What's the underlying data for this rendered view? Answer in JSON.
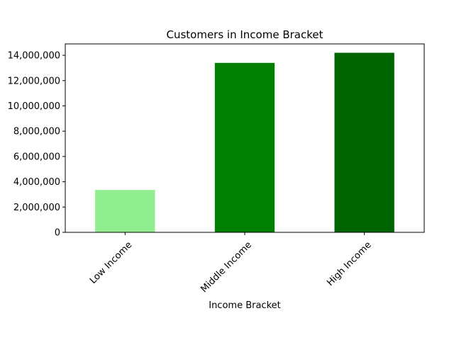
{
  "chart_data": {
    "type": "bar",
    "title": "Customers in Income Bracket",
    "xlabel": "Income Bracket",
    "ylabel": "",
    "categories": [
      "Low Income",
      "Middle Income",
      "High Income"
    ],
    "values": [
      3350000,
      13400000,
      14200000
    ],
    "colors": [
      "#90ee90",
      "#008000",
      "#006400"
    ],
    "ylim": [
      0,
      14900000
    ],
    "yticks": [
      0,
      2000000,
      4000000,
      6000000,
      8000000,
      10000000,
      12000000,
      14000000
    ],
    "ytick_labels": [
      "0",
      "2,000,000",
      "4,000,000",
      "6,000,000",
      "8,000,000",
      "10,000,000",
      "12,000,000",
      "14,000,000"
    ],
    "xtick_rotation_deg": 45,
    "grid": false,
    "legend": "none"
  }
}
